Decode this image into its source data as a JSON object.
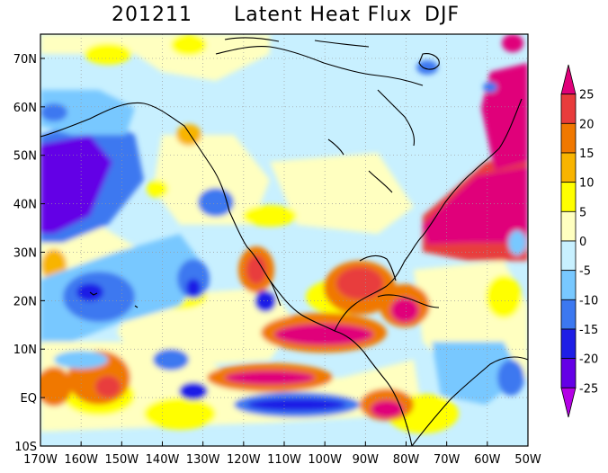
{
  "title": {
    "date": "201211",
    "variable": "Latent Heat Flux",
    "season": "DJF"
  },
  "map": {
    "lon_range": [
      -170,
      -50
    ],
    "lat_range": [
      -10,
      75
    ],
    "x_tick_labels": [
      "170W",
      "160W",
      "150W",
      "140W",
      "130W",
      "120W",
      "110W",
      "100W",
      "90W",
      "80W",
      "70W",
      "60W",
      "50W"
    ],
    "y_tick_labels": [
      "10S",
      "EQ",
      "10N",
      "20N",
      "30N",
      "40N",
      "50N",
      "60N",
      "70N"
    ],
    "gridlines": "dotted"
  },
  "colorbar": {
    "labels": [
      "25",
      "20",
      "15",
      "10",
      "5",
      "0",
      "-5",
      "-10",
      "-15",
      "-20",
      "-25"
    ],
    "colors": [
      "#e0007a",
      "#e83c3c",
      "#f07800",
      "#f8b400",
      "#ffff00",
      "#ffffc0",
      "#c8f0ff",
      "#78c8ff",
      "#3c78f0",
      "#1e1ee6",
      "#6400e6",
      "#b400e6"
    ]
  },
  "colors": {
    "coast": "#000000",
    "grid": "#999999"
  }
}
